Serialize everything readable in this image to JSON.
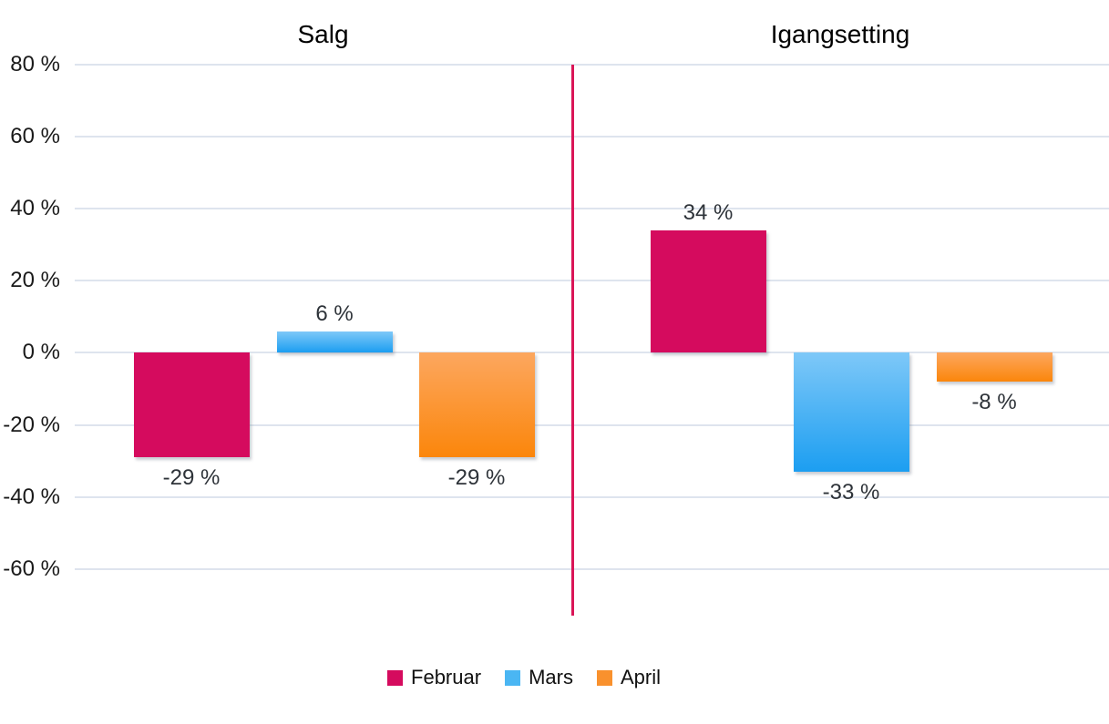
{
  "chart_data": {
    "type": "bar",
    "categories": [
      "Salg",
      "Igangsetting"
    ],
    "series": [
      {
        "name": "Februar",
        "color": "#D50B5E",
        "gradient_top": "#D50B5E",
        "gradient_bottom": "#D50B5E",
        "legend_color": "#D50B5E",
        "values": [
          -29,
          34
        ],
        "labels": [
          "-29 %",
          "34 %"
        ]
      },
      {
        "name": "Mars",
        "color": "#2FA8F0",
        "gradient_top": "#7EC8F8",
        "gradient_bottom": "#1C9EF1",
        "legend_color": "#4AB6F3",
        "values": [
          6,
          -33
        ],
        "labels": [
          "6 %",
          "-33 %"
        ]
      },
      {
        "name": "April",
        "color": "#FB8E1C",
        "gradient_top": "#FCA75F",
        "gradient_bottom": "#FB860B",
        "legend_color": "#F9912D",
        "values": [
          -29,
          -8
        ],
        "labels": [
          "-29 %",
          "-8 %"
        ]
      }
    ],
    "y_axis": {
      "tick_values": [
        80,
        60,
        40,
        20,
        0,
        -20,
        -40,
        -60
      ],
      "tick_labels": [
        "80 %",
        "60 %",
        "40 %",
        "20 %",
        "0 %",
        "-20 %",
        "-40 %",
        "-60 %"
      ],
      "max": 80,
      "min": -60,
      "unit": "%"
    },
    "grid": true,
    "legend_position": "bottom",
    "colors": {
      "gridline": "#DEE4EE",
      "separator": "#DA1557",
      "value_label": "#2E3339",
      "axis_label": "#1A1A1A",
      "title": "#000000"
    }
  }
}
